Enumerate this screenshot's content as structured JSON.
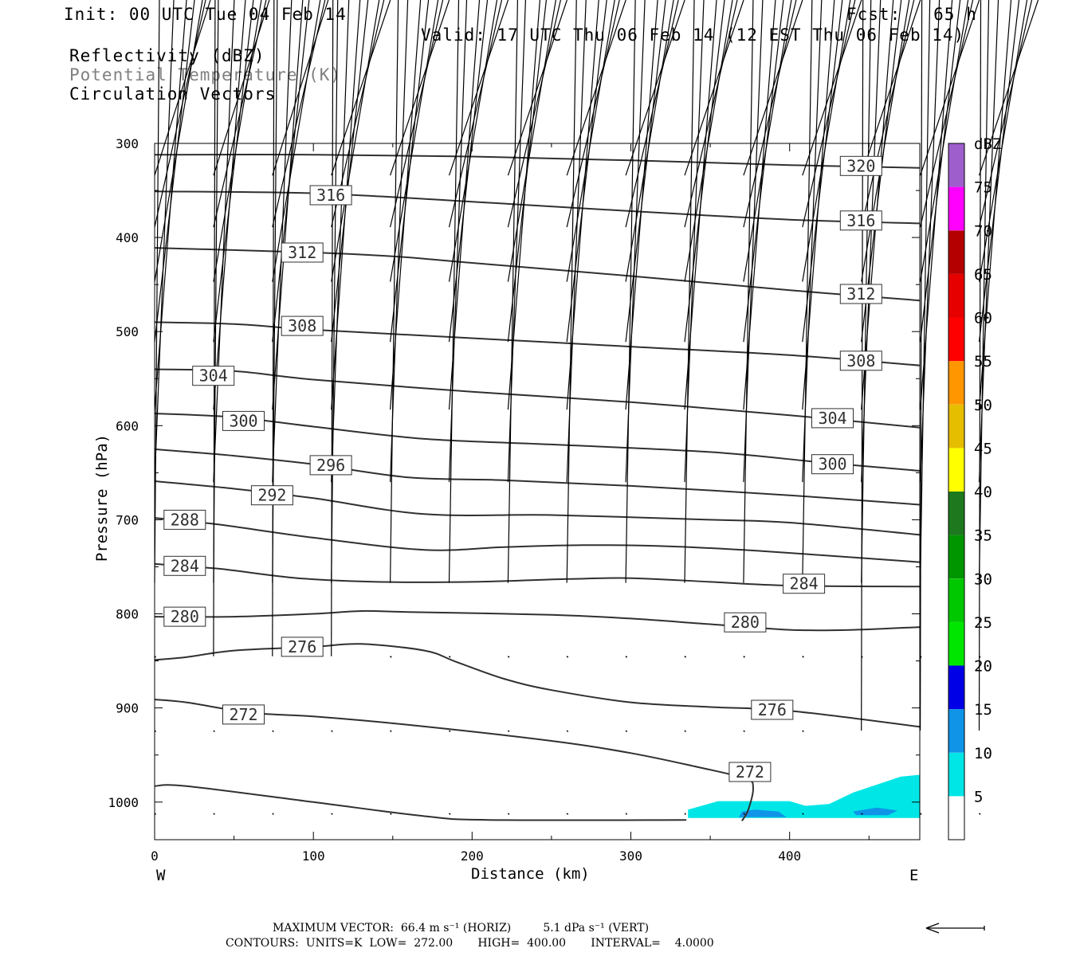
{
  "header": {
    "init": "Init: 00 UTC Tue 04 Feb 14",
    "fcst": "Fcst:   65 h",
    "valid": "Valid: 17 UTC Thu 06 Feb 14 (12 EST Thu 06 Feb 14)",
    "field1": "Reflectivity (dBZ)",
    "field2": "Potential Temperature (K)",
    "field3": "Circulation Vectors"
  },
  "chart_data": {
    "type": "cross-section",
    "xlabel": "Distance (km)",
    "ylabel": "Pressure (hPa)",
    "xlim": [
      0,
      482
    ],
    "ylim": [
      1040,
      300
    ],
    "x_ticks": [
      "0",
      "100",
      "200",
      "300",
      "400"
    ],
    "y_ticks": [
      "300",
      "400",
      "500",
      "600",
      "700",
      "800",
      "900",
      "1000"
    ],
    "west_label": "W",
    "east_label": "E",
    "theta_contours": [
      {
        "level": 272,
        "label": "272",
        "points": [
          [
            0,
            983
          ],
          [
            20,
            983
          ],
          [
            100,
            1000
          ],
          [
            170,
            1015
          ],
          [
            210,
            1019
          ],
          [
            335,
            1019
          ]
        ]
      },
      {
        "level": 272,
        "label": "272",
        "points": [
          [
            0,
            891
          ],
          [
            20,
            894
          ],
          [
            60,
            905
          ],
          [
            100,
            909
          ],
          [
            160,
            918
          ],
          [
            250,
            935
          ],
          [
            300,
            948
          ],
          [
            340,
            962
          ],
          [
            372,
            975
          ],
          [
            377,
            985
          ],
          [
            374,
            1008
          ],
          [
            370,
            1020
          ]
        ]
      },
      {
        "level": 276,
        "label": "276",
        "points": [
          [
            0,
            849
          ],
          [
            20,
            846
          ],
          [
            50,
            839
          ],
          [
            100,
            835
          ],
          [
            130,
            832
          ],
          [
            170,
            839
          ],
          [
            190,
            851
          ],
          [
            220,
            869
          ],
          [
            250,
            881
          ],
          [
            300,
            894
          ],
          [
            350,
            899
          ],
          [
            400,
            903
          ],
          [
            482,
            920
          ]
        ]
      },
      {
        "level": 280,
        "label": "280",
        "points": [
          [
            0,
            803
          ],
          [
            50,
            803
          ],
          [
            100,
            800
          ],
          [
            130,
            797
          ],
          [
            160,
            798
          ],
          [
            250,
            801
          ],
          [
            300,
            805
          ],
          [
            350,
            811
          ],
          [
            400,
            817
          ],
          [
            440,
            817
          ],
          [
            482,
            814
          ]
        ]
      },
      {
        "level": 284,
        "label": "284",
        "points": [
          [
            0,
            747
          ],
          [
            40,
            752
          ],
          [
            90,
            762
          ],
          [
            140,
            766
          ],
          [
            200,
            766
          ],
          [
            260,
            763
          ],
          [
            300,
            762
          ],
          [
            350,
            766
          ],
          [
            400,
            770
          ],
          [
            482,
            771
          ]
        ]
      },
      {
        "level": 288,
        "label": "288",
        "points": [
          [
            0,
            698
          ],
          [
            40,
            705
          ],
          [
            100,
            719
          ],
          [
            170,
            732
          ],
          [
            220,
            729
          ],
          [
            270,
            727
          ],
          [
            320,
            728
          ],
          [
            380,
            733
          ],
          [
            482,
            745
          ]
        ]
      },
      {
        "level": 292,
        "label": "292",
        "points": [
          [
            0,
            659
          ],
          [
            50,
            667
          ],
          [
            100,
            677
          ],
          [
            170,
            694
          ],
          [
            250,
            695
          ],
          [
            350,
            700
          ],
          [
            400,
            703
          ],
          [
            482,
            716
          ]
        ]
      },
      {
        "level": 296,
        "label": "296",
        "points": [
          [
            0,
            625
          ],
          [
            50,
            632
          ],
          [
            100,
            641
          ],
          [
            160,
            655
          ],
          [
            220,
            658
          ],
          [
            300,
            664
          ],
          [
            400,
            674
          ],
          [
            482,
            684
          ]
        ]
      },
      {
        "level": 300,
        "label": "300",
        "points": [
          [
            0,
            587
          ],
          [
            50,
            591
          ],
          [
            100,
            601
          ],
          [
            170,
            614
          ],
          [
            250,
            620
          ],
          [
            350,
            628
          ],
          [
            420,
            639
          ],
          [
            482,
            648
          ]
        ]
      },
      {
        "level": 304,
        "label": "304",
        "points": [
          [
            0,
            540
          ],
          [
            50,
            542
          ],
          [
            100,
            551
          ],
          [
            200,
            564
          ],
          [
            300,
            575
          ],
          [
            400,
            589
          ],
          [
            482,
            602
          ]
        ]
      },
      {
        "level": 308,
        "label": "308",
        "points": [
          [
            0,
            490
          ],
          [
            50,
            492
          ],
          [
            100,
            498
          ],
          [
            200,
            507
          ],
          [
            300,
            516
          ],
          [
            400,
            525
          ],
          [
            482,
            536
          ]
        ]
      },
      {
        "level": 312,
        "label": "312",
        "points": [
          [
            0,
            411
          ],
          [
            100,
            416
          ],
          [
            150,
            420
          ],
          [
            200,
            427
          ],
          [
            300,
            441
          ],
          [
            400,
            456
          ],
          [
            482,
            467
          ]
        ]
      },
      {
        "level": 316,
        "label": "316",
        "points": [
          [
            0,
            351
          ],
          [
            100,
            353
          ],
          [
            200,
            362
          ],
          [
            300,
            372
          ],
          [
            400,
            381
          ],
          [
            482,
            385
          ]
        ]
      },
      {
        "level": 320,
        "label": "320",
        "points": [
          [
            0,
            312
          ],
          [
            100,
            312
          ],
          [
            200,
            314
          ],
          [
            300,
            318
          ],
          [
            400,
            323
          ],
          [
            482,
            326
          ]
        ]
      }
    ],
    "reflectivity": [
      {
        "dbz_min": 5,
        "dbz_max": 10,
        "color": "#00e6e6",
        "points": [
          [
            336,
            1008
          ],
          [
            355,
            999
          ],
          [
            400,
            999
          ],
          [
            410,
            1004
          ],
          [
            425,
            1002
          ],
          [
            440,
            990
          ],
          [
            470,
            973
          ],
          [
            482,
            971
          ],
          [
            482,
            1017
          ],
          [
            336,
            1017
          ]
        ]
      },
      {
        "dbz_min": 10,
        "dbz_max": 15,
        "color": "#0f94e8",
        "points": [
          [
            370,
            1010
          ],
          [
            378,
            1008
          ],
          [
            393,
            1010
          ],
          [
            398,
            1016
          ],
          [
            368,
            1016
          ]
        ]
      },
      {
        "dbz_min": 10,
        "dbz_max": 15,
        "color": "#0f94e8",
        "points": [
          [
            440,
            1010
          ],
          [
            455,
            1006
          ],
          [
            468,
            1009
          ],
          [
            462,
            1014
          ],
          [
            442,
            1014
          ]
        ]
      }
    ],
    "vector_rows": [
      {
        "p": 334,
        "u": [
          35,
          35,
          35,
          37,
          37,
          37,
          37,
          37,
          37,
          37,
          37,
          37,
          37,
          37,
          37
        ],
        "w": [
          0,
          0,
          1,
          1,
          1,
          1,
          1,
          1,
          1,
          1,
          1,
          1,
          1,
          1,
          1
        ]
      },
      {
        "p": 389,
        "u": [
          32,
          33,
          33,
          33,
          33,
          33,
          33,
          33,
          33,
          33,
          33,
          33,
          33,
          33,
          33
        ],
        "w": [
          0,
          1,
          1,
          1,
          1,
          1,
          1,
          1,
          1,
          1,
          1,
          1,
          1,
          1,
          1
        ]
      },
      {
        "p": 447,
        "u": [
          30,
          30,
          30,
          30,
          30,
          30,
          30,
          30,
          30,
          30,
          30,
          30,
          30,
          30,
          30
        ],
        "w": [
          0,
          0,
          1,
          1,
          1,
          1,
          1,
          1,
          1,
          1,
          1,
          1,
          1,
          1,
          1
        ]
      },
      {
        "p": 511,
        "u": [
          25,
          25,
          23,
          23,
          24,
          24,
          24,
          25,
          25,
          25,
          25,
          25,
          25,
          25,
          25
        ],
        "w": [
          0,
          0,
          0,
          1,
          1,
          1,
          1,
          1,
          1,
          1,
          1,
          1,
          1,
          1,
          1
        ]
      },
      {
        "p": 583,
        "u": [
          20,
          20,
          19,
          18,
          19,
          19,
          20,
          20,
          20,
          20,
          20,
          20,
          20,
          20,
          20
        ],
        "w": [
          0,
          0,
          0,
          0,
          0,
          1,
          1,
          1,
          1,
          1,
          1,
          1,
          1,
          1,
          1
        ]
      },
      {
        "p": 660,
        "u": [
          12,
          13,
          12,
          11,
          11,
          11,
          11,
          12,
          12,
          12,
          12,
          12,
          12,
          12,
          12
        ],
        "w": [
          0,
          1,
          1,
          1,
          1,
          1,
          0,
          0,
          0,
          0,
          0,
          0,
          0,
          0,
          0
        ]
      },
      {
        "p": 767,
        "u": [
          3,
          3,
          3,
          4,
          5,
          6,
          6,
          6,
          6,
          6,
          6,
          6,
          6,
          6,
          6
        ],
        "w": [
          1,
          1,
          1,
          1,
          1,
          1,
          1,
          0,
          0,
          0,
          0,
          0,
          0,
          0,
          0
        ]
      },
      {
        "p": 845,
        "u": [
          0,
          1,
          1,
          1,
          0,
          0,
          0,
          0,
          0,
          0,
          0,
          0,
          0,
          0,
          0
        ],
        "w": [
          1,
          1,
          1,
          1,
          1,
          1,
          1,
          1,
          1,
          1,
          1,
          1,
          1,
          1,
          1
        ]
      },
      {
        "p": 924,
        "u": [
          0,
          0,
          0,
          0,
          0,
          0,
          0,
          0,
          0,
          0,
          0,
          0,
          1,
          1,
          1
        ],
        "w": [
          1,
          1,
          1,
          1,
          1,
          1,
          1,
          1,
          1,
          1,
          1,
          1,
          1,
          1,
          1
        ]
      },
      {
        "p": 1012,
        "u": [
          0,
          0,
          0,
          0,
          0,
          0,
          0,
          0,
          0,
          0,
          0,
          0,
          0,
          0,
          0
        ],
        "w": [
          0,
          0,
          0,
          0,
          1,
          1,
          1,
          1,
          1,
          1,
          1,
          1,
          1,
          1,
          1
        ]
      }
    ],
    "colorbar": {
      "title": "dBZ",
      "ticks": [
        "5",
        "10",
        "15",
        "20",
        "25",
        "30",
        "35",
        "40",
        "45",
        "50",
        "55",
        "60",
        "65",
        "70",
        "75"
      ],
      "colors": [
        "#00e6e6",
        "#0f94e8",
        "#0000e6",
        "#00e600",
        "#00c800",
        "#009600",
        "#1e781e",
        "#ffff00",
        "#e6be00",
        "#ff9600",
        "#ff0000",
        "#e60000",
        "#b40000",
        "#ff00ff",
        "#9e5fcd"
      ]
    }
  },
  "footer": {
    "max_vector_line": "MAXIMUM VECTOR:  66.4 m s⁻¹ (HORIZ)         5.1 dPa s⁻¹ (VERT)",
    "contours_line": "CONTOURS:  UNITS=K  LOW=  272.00       HIGH=  400.00       INTERVAL=    4.0000"
  },
  "colors": {
    "contour": "#303030",
    "vector": "#000000",
    "frame": "#000000",
    "label2": "#808080"
  }
}
